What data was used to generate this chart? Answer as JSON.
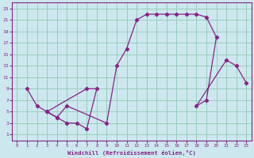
{
  "xlabel": "Windchill (Refroidissement éolien,°C)",
  "bg_color": "#cce8ee",
  "grid_color": "#99ccbb",
  "line_color": "#882288",
  "marker": "D",
  "marker_size": 2.2,
  "xlim": [
    -0.5,
    23.5
  ],
  "ylim": [
    0,
    24
  ],
  "xticks": [
    0,
    1,
    2,
    3,
    4,
    5,
    6,
    7,
    8,
    9,
    10,
    11,
    12,
    13,
    14,
    15,
    16,
    17,
    18,
    19,
    20,
    21,
    22,
    23
  ],
  "yticks": [
    1,
    3,
    5,
    7,
    9,
    11,
    13,
    15,
    17,
    19,
    21,
    23
  ],
  "curve_x": [
    1,
    2,
    3,
    4,
    5,
    6,
    7,
    8,
    7,
    3,
    4,
    5,
    9,
    10,
    11,
    12,
    13,
    14,
    15,
    16,
    17,
    18,
    19,
    20,
    19,
    18,
    21,
    22,
    23
  ],
  "curve_y": [
    9,
    6,
    5,
    4,
    3,
    3,
    2,
    9,
    9,
    5,
    4,
    6,
    3,
    13,
    16,
    21,
    22,
    22,
    22,
    22,
    22,
    22,
    21.5,
    18,
    7,
    6,
    14,
    13,
    10
  ]
}
